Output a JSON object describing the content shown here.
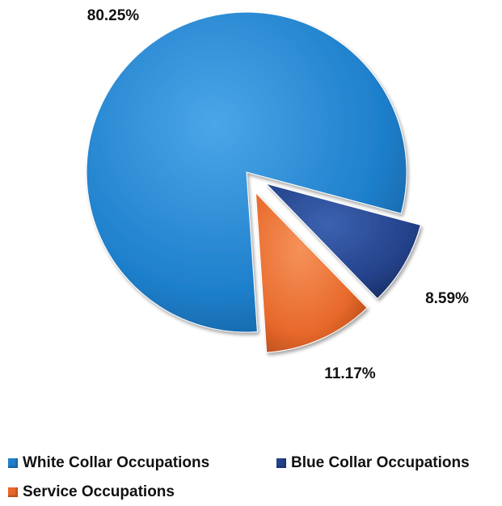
{
  "chart_data": {
    "type": "pie",
    "exploded": true,
    "legend_position": "bottom",
    "slices": [
      {
        "label": "White Collar Occupations",
        "value": 80.25,
        "value_label": "80.25%",
        "color": "#1E7FCB"
      },
      {
        "label": "Blue Collar Occupations",
        "value": 8.59,
        "value_label": "8.59%",
        "color": "#24428A"
      },
      {
        "label": "Service Occupations",
        "value": 11.17,
        "value_label": "11.17%",
        "color": "#E8692B"
      }
    ]
  }
}
